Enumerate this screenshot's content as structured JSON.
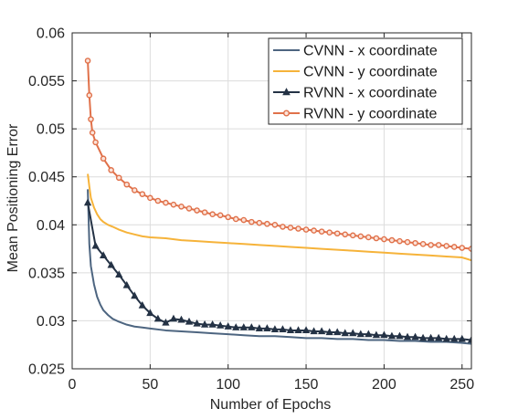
{
  "chart_data": {
    "type": "line",
    "xlabel": "Number of Epochs",
    "ylabel": "Mean Positioning Error",
    "xlim": [
      0,
      256
    ],
    "ylim": [
      0.025,
      0.06
    ],
    "xticks": [
      0,
      50,
      100,
      150,
      200,
      250
    ],
    "xtick_labels": [
      "0",
      "50",
      "100",
      "150",
      "200",
      "250"
    ],
    "yticks": [
      0.025,
      0.03,
      0.035,
      0.04,
      0.045,
      0.05,
      0.055,
      0.06
    ],
    "ytick_labels": [
      "0.025",
      "0.03",
      "0.035",
      "0.04",
      "0.045",
      "0.05",
      "0.055",
      "0.06"
    ],
    "grid": true,
    "legend_position": "top-right",
    "series": [
      {
        "name": "CVNN - x coordinate",
        "color": "#4d6580",
        "marker": "none",
        "x": [
          10,
          11,
          12,
          14,
          16,
          18,
          20,
          23,
          26,
          30,
          35,
          40,
          45,
          50,
          60,
          70,
          80,
          90,
          100,
          110,
          120,
          130,
          140,
          150,
          160,
          170,
          180,
          190,
          200,
          210,
          220,
          230,
          240,
          250,
          256
        ],
        "y": [
          0.0437,
          0.038,
          0.0357,
          0.0338,
          0.0325,
          0.0317,
          0.0311,
          0.0306,
          0.0302,
          0.0299,
          0.0296,
          0.0294,
          0.0293,
          0.0292,
          0.029,
          0.0289,
          0.0288,
          0.0287,
          0.0286,
          0.0285,
          0.0284,
          0.0284,
          0.0283,
          0.0282,
          0.0282,
          0.0281,
          0.0281,
          0.028,
          0.028,
          0.0279,
          0.0279,
          0.0278,
          0.0278,
          0.0277,
          0.0276
        ]
      },
      {
        "name": "CVNN - y coordinate",
        "color": "#f6b33a",
        "marker": "none",
        "x": [
          10,
          11,
          12,
          14,
          16,
          18,
          20,
          23,
          26,
          30,
          35,
          40,
          45,
          50,
          60,
          70,
          80,
          90,
          100,
          110,
          120,
          130,
          140,
          150,
          160,
          170,
          180,
          190,
          200,
          210,
          220,
          230,
          240,
          250,
          256
        ],
        "y": [
          0.0453,
          0.044,
          0.0428,
          0.0418,
          0.0411,
          0.0406,
          0.0403,
          0.04,
          0.0398,
          0.0395,
          0.0392,
          0.039,
          0.0388,
          0.0387,
          0.0386,
          0.0384,
          0.0383,
          0.0382,
          0.0381,
          0.038,
          0.0379,
          0.0378,
          0.0377,
          0.0376,
          0.0375,
          0.0374,
          0.0373,
          0.0372,
          0.0371,
          0.037,
          0.0369,
          0.0368,
          0.0367,
          0.0366,
          0.0363
        ]
      },
      {
        "name": "RVNN - x coordinate",
        "color": "#243245",
        "marker": "triangle",
        "x": [
          10,
          15,
          20,
          25,
          30,
          35,
          40,
          45,
          50,
          55,
          60,
          65,
          70,
          75,
          80,
          85,
          90,
          95,
          100,
          105,
          110,
          115,
          120,
          125,
          130,
          135,
          140,
          145,
          150,
          155,
          160,
          165,
          170,
          175,
          180,
          185,
          190,
          195,
          200,
          205,
          210,
          215,
          220,
          225,
          230,
          235,
          240,
          245,
          250,
          256
        ],
        "y": [
          0.0423,
          0.0378,
          0.0368,
          0.0358,
          0.0348,
          0.0337,
          0.0326,
          0.0316,
          0.0308,
          0.0302,
          0.0298,
          0.0302,
          0.0301,
          0.0299,
          0.0297,
          0.0296,
          0.0296,
          0.0295,
          0.0294,
          0.0293,
          0.0293,
          0.0293,
          0.0292,
          0.0292,
          0.0291,
          0.0291,
          0.029,
          0.029,
          0.029,
          0.0289,
          0.0289,
          0.0288,
          0.0288,
          0.0287,
          0.0287,
          0.0286,
          0.0286,
          0.0285,
          0.0285,
          0.0284,
          0.0284,
          0.0283,
          0.0283,
          0.0282,
          0.0282,
          0.0282,
          0.0281,
          0.0281,
          0.0281,
          0.028
        ]
      },
      {
        "name": "RVNN - y coordinate",
        "color": "#e0714a",
        "marker": "circle",
        "x": [
          10,
          11,
          12,
          13,
          15,
          20,
          25,
          30,
          35,
          40,
          45,
          50,
          55,
          60,
          65,
          70,
          75,
          80,
          85,
          90,
          95,
          100,
          105,
          110,
          115,
          120,
          125,
          130,
          135,
          140,
          145,
          150,
          155,
          160,
          165,
          170,
          175,
          180,
          185,
          190,
          195,
          200,
          205,
          210,
          215,
          220,
          225,
          230,
          235,
          240,
          245,
          250,
          256
        ],
        "y": [
          0.0571,
          0.0535,
          0.051,
          0.0496,
          0.0486,
          0.0469,
          0.0457,
          0.0449,
          0.0442,
          0.0436,
          0.0432,
          0.0428,
          0.0425,
          0.0423,
          0.0421,
          0.0419,
          0.0417,
          0.0415,
          0.0413,
          0.0411,
          0.041,
          0.0408,
          0.0406,
          0.0405,
          0.0403,
          0.0402,
          0.0401,
          0.04,
          0.0398,
          0.0397,
          0.0396,
          0.0395,
          0.0394,
          0.0393,
          0.0392,
          0.0391,
          0.039,
          0.0389,
          0.0388,
          0.0387,
          0.0386,
          0.0385,
          0.0384,
          0.0383,
          0.0382,
          0.0381,
          0.038,
          0.0379,
          0.0379,
          0.0378,
          0.0377,
          0.0376,
          0.0375
        ]
      }
    ]
  }
}
